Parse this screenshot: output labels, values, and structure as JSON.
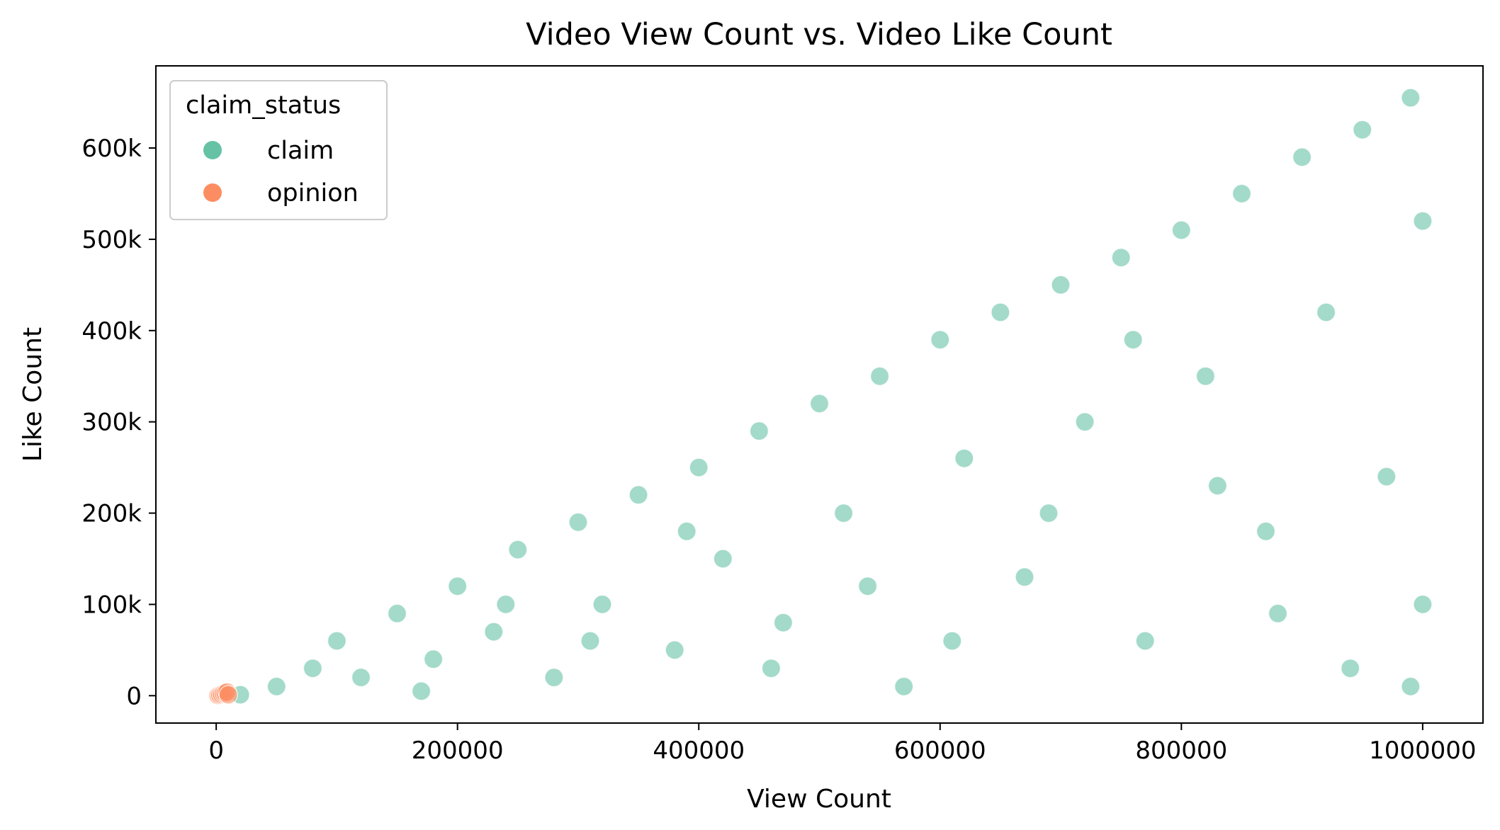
{
  "chart_data": {
    "type": "scatter",
    "title": "Video View Count vs. Video Like Count",
    "xlabel": "View Count",
    "ylabel": "Like Count",
    "xlim": [
      -50000,
      1050000
    ],
    "ylim": [
      -30000,
      690000
    ],
    "x_ticks": [
      0,
      200000,
      400000,
      600000,
      800000,
      1000000
    ],
    "x_tick_labels": [
      "0",
      "200000",
      "400000",
      "600000",
      "800000",
      "1000000"
    ],
    "y_ticks": [
      0,
      100000,
      200000,
      300000,
      400000,
      500000,
      600000
    ],
    "y_tick_labels": [
      "0",
      "100k",
      "200k",
      "300k",
      "400k",
      "500k",
      "600k"
    ],
    "grid": false,
    "legend": {
      "title": "claim_status",
      "placement": "top-left",
      "entries": [
        "claim",
        "opinion"
      ]
    },
    "series": [
      {
        "name": "claim",
        "color": "#66c2a5",
        "points": [
          [
            20000,
            1000
          ],
          [
            50000,
            10000
          ],
          [
            80000,
            30000
          ],
          [
            100000,
            60000
          ],
          [
            120000,
            20000
          ],
          [
            150000,
            90000
          ],
          [
            180000,
            40000
          ],
          [
            200000,
            120000
          ],
          [
            230000,
            70000
          ],
          [
            250000,
            160000
          ],
          [
            280000,
            20000
          ],
          [
            300000,
            190000
          ],
          [
            320000,
            100000
          ],
          [
            350000,
            220000
          ],
          [
            380000,
            50000
          ],
          [
            400000,
            250000
          ],
          [
            420000,
            150000
          ],
          [
            450000,
            290000
          ],
          [
            470000,
            80000
          ],
          [
            500000,
            320000
          ],
          [
            520000,
            200000
          ],
          [
            550000,
            350000
          ],
          [
            570000,
            10000
          ],
          [
            600000,
            390000
          ],
          [
            620000,
            260000
          ],
          [
            650000,
            420000
          ],
          [
            670000,
            130000
          ],
          [
            700000,
            450000
          ],
          [
            720000,
            300000
          ],
          [
            750000,
            480000
          ],
          [
            770000,
            60000
          ],
          [
            800000,
            510000
          ],
          [
            820000,
            350000
          ],
          [
            850000,
            550000
          ],
          [
            870000,
            180000
          ],
          [
            900000,
            590000
          ],
          [
            920000,
            420000
          ],
          [
            950000,
            620000
          ],
          [
            970000,
            240000
          ],
          [
            990000,
            655000
          ],
          [
            1000000,
            520000
          ],
          [
            1000000,
            100000
          ],
          [
            990000,
            10000
          ],
          [
            940000,
            30000
          ],
          [
            880000,
            90000
          ],
          [
            830000,
            230000
          ],
          [
            760000,
            390000
          ],
          [
            690000,
            200000
          ],
          [
            610000,
            60000
          ],
          [
            540000,
            120000
          ],
          [
            460000,
            30000
          ],
          [
            390000,
            180000
          ],
          [
            310000,
            60000
          ],
          [
            240000,
            100000
          ],
          [
            170000,
            5000
          ]
        ]
      },
      {
        "name": "opinion",
        "color": "#fc8d62",
        "points": [
          [
            1500,
            200
          ],
          [
            3000,
            800
          ],
          [
            4500,
            1500
          ],
          [
            6000,
            2500
          ],
          [
            7500,
            3000
          ],
          [
            9000,
            4000
          ],
          [
            10000,
            1000
          ]
        ]
      }
    ]
  }
}
